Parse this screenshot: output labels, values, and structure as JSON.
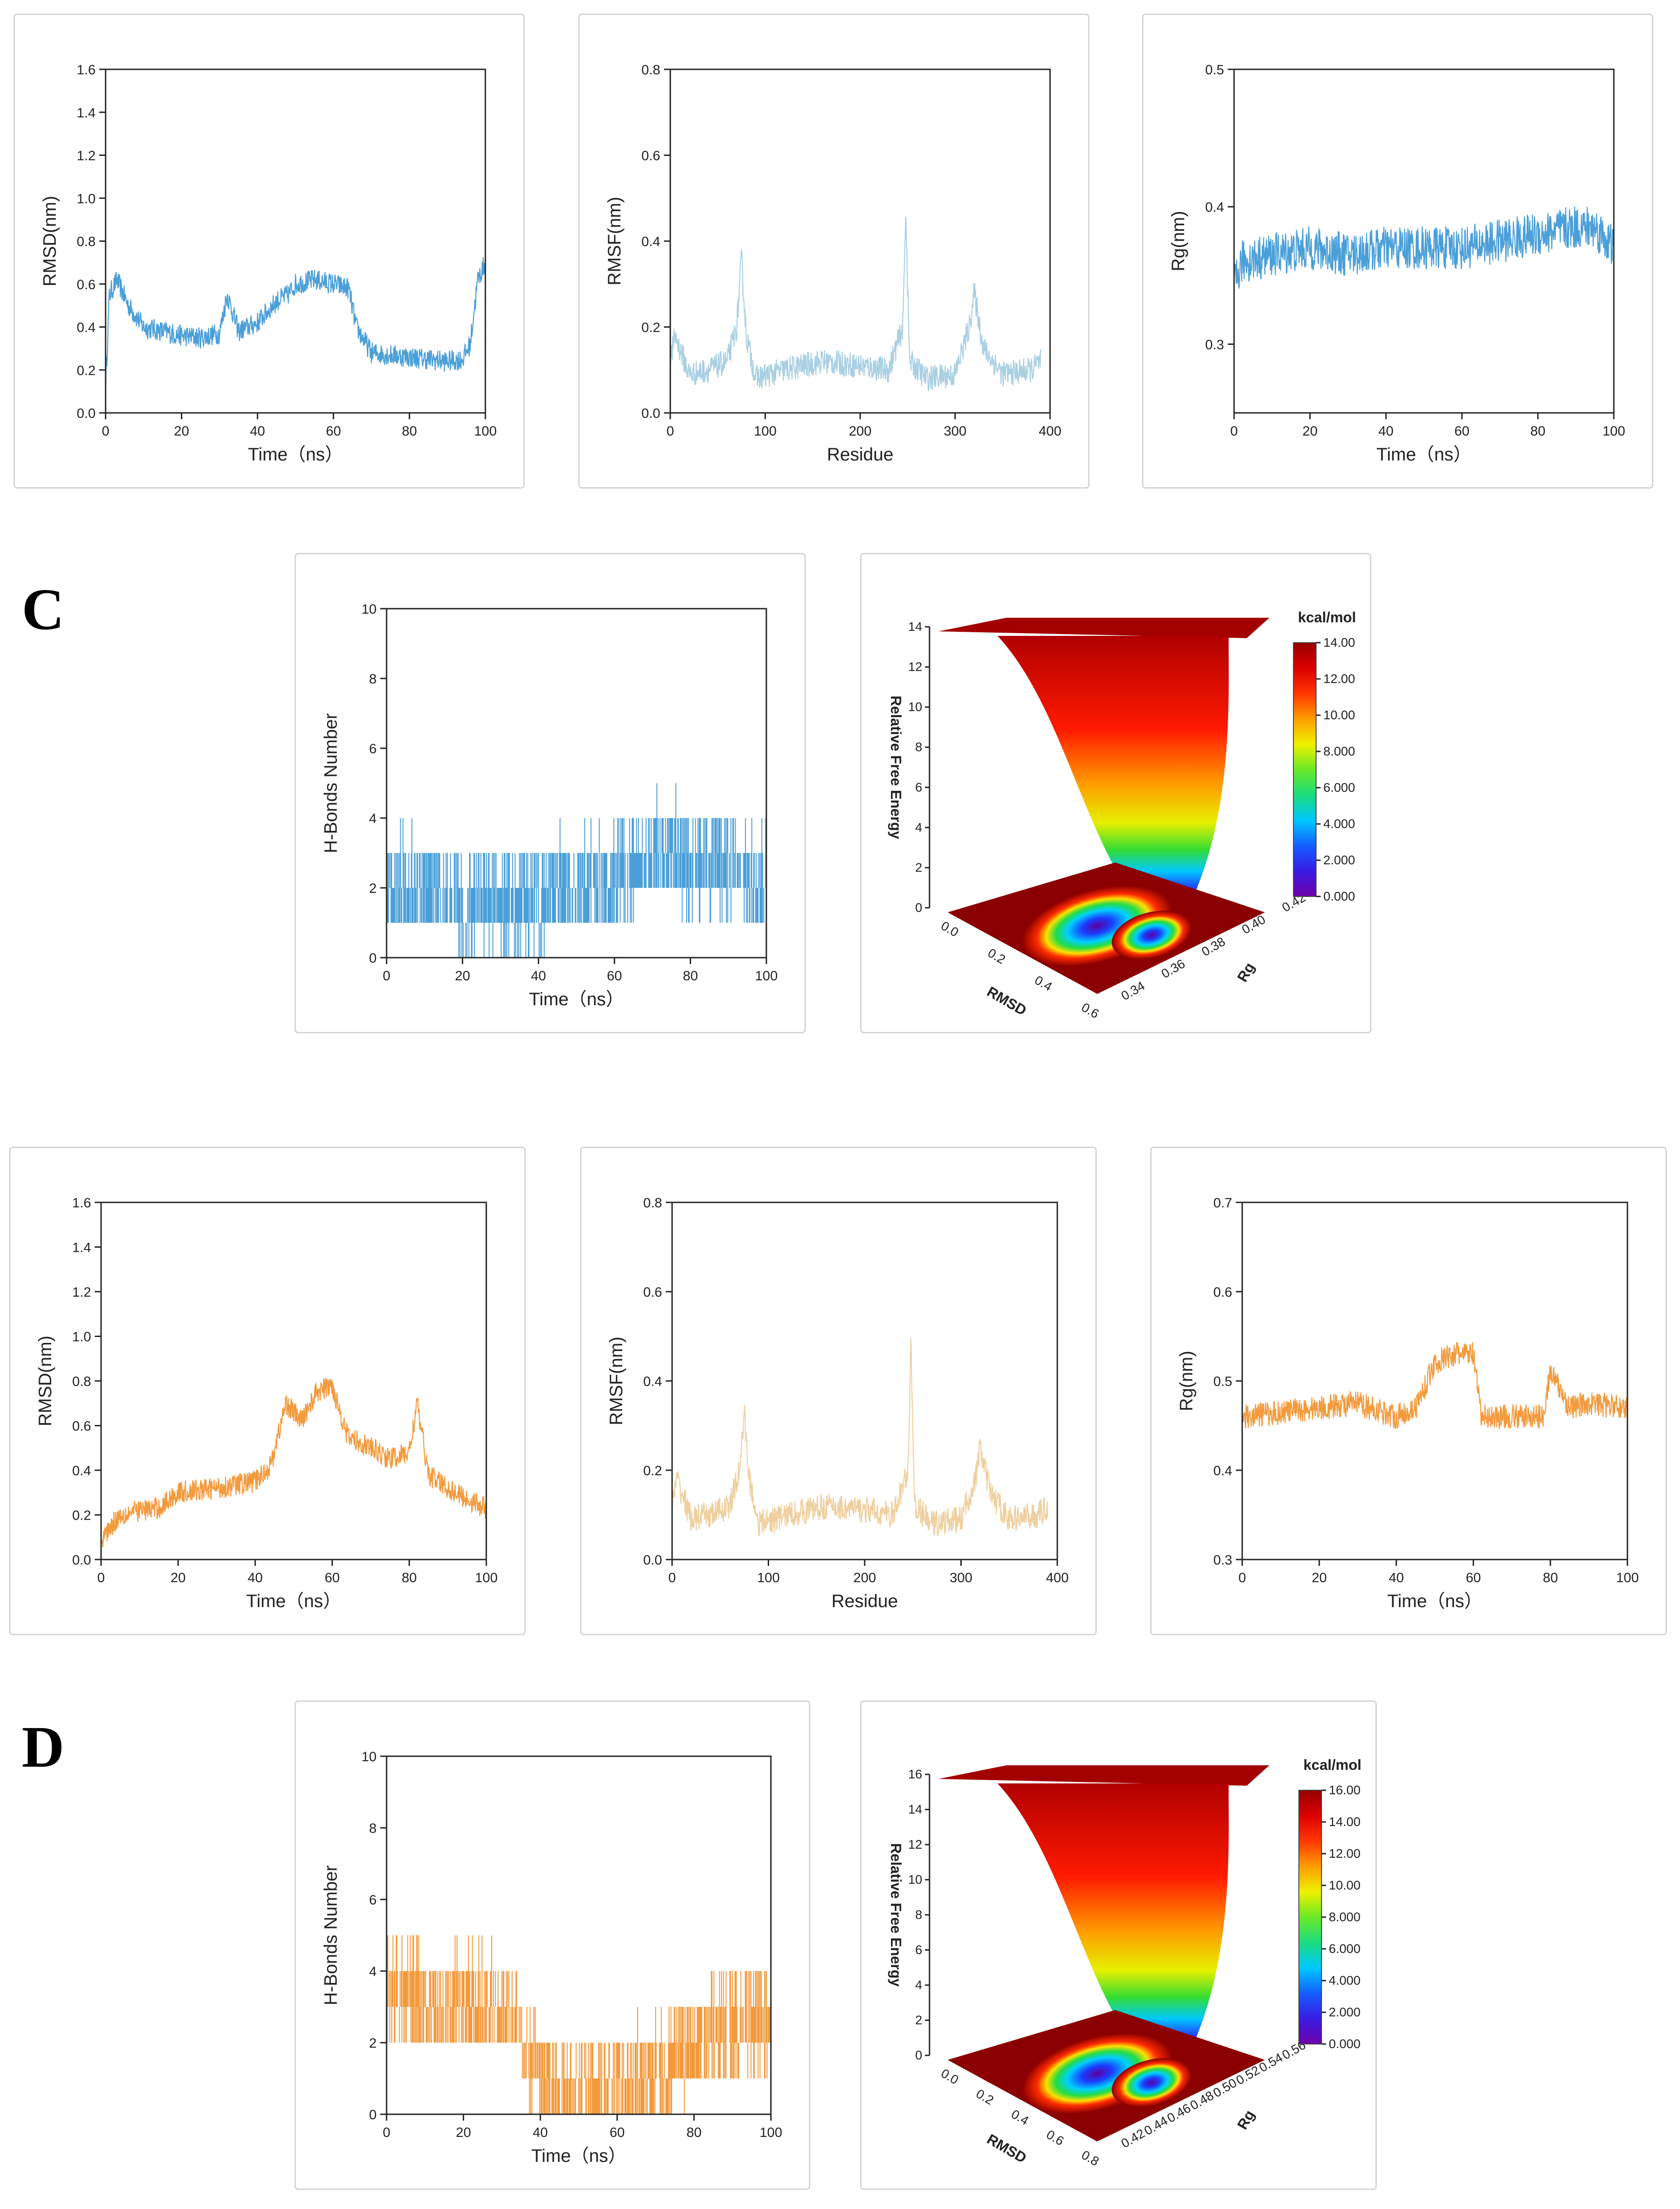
{
  "sections": {
    "c_label": "C",
    "d_label": "D"
  },
  "colors": {
    "blue": "#4a9fd8",
    "blue_light": "#a9cfe3",
    "orange": "#f39a3c",
    "orange_light": "#efcf9f"
  },
  "chart_data": [
    {
      "id": "rmsd1",
      "type": "line",
      "color": "blue",
      "xlabel": "Time（ns）",
      "ylabel": "RMSD(nm)",
      "xlim": [
        0,
        100
      ],
      "ylim": [
        0,
        1.6
      ],
      "xticks": [
        "0",
        "20",
        "40",
        "60",
        "80",
        "100"
      ],
      "yticks": [
        "0.0",
        "0.2",
        "0.4",
        "0.6",
        "0.8",
        "1.0",
        "1.2",
        "1.4",
        "1.6"
      ],
      "x": [
        0,
        1,
        3,
        6,
        10,
        15,
        20,
        25,
        30,
        32,
        35,
        40,
        45,
        48,
        50,
        55,
        60,
        64,
        66,
        70,
        75,
        80,
        85,
        90,
        94,
        96,
        98,
        100
      ],
      "y": [
        0.12,
        0.55,
        0.62,
        0.5,
        0.4,
        0.38,
        0.36,
        0.35,
        0.37,
        0.55,
        0.38,
        0.42,
        0.52,
        0.55,
        0.6,
        0.62,
        0.6,
        0.58,
        0.4,
        0.28,
        0.27,
        0.26,
        0.25,
        0.24,
        0.25,
        0.32,
        0.62,
        0.7
      ],
      "noise": 0.05
    },
    {
      "id": "rmsf1",
      "type": "line",
      "color": "blue_light",
      "xlabel": "Residue",
      "ylabel": "RMSF(nm)",
      "xlim": [
        0,
        400
      ],
      "ylim": [
        0,
        0.8
      ],
      "xticks": [
        "0",
        "100",
        "200",
        "300",
        "400"
      ],
      "yticks": [
        "0.0",
        "0.2",
        "0.4",
        "0.6",
        "0.8"
      ],
      "x": [
        0,
        5,
        20,
        40,
        60,
        70,
        75,
        80,
        90,
        120,
        160,
        200,
        230,
        245,
        248,
        252,
        270,
        300,
        315,
        320,
        330,
        350,
        380,
        390
      ],
      "y": [
        0.12,
        0.18,
        0.09,
        0.1,
        0.12,
        0.2,
        0.36,
        0.18,
        0.08,
        0.1,
        0.12,
        0.11,
        0.1,
        0.2,
        0.48,
        0.12,
        0.08,
        0.09,
        0.2,
        0.28,
        0.15,
        0.09,
        0.1,
        0.12
      ],
      "noise": 0.03
    },
    {
      "id": "rg1",
      "type": "line",
      "color": "blue",
      "xlabel": "Time（ns）",
      "ylabel": "Rg(nm)",
      "xlim": [
        0,
        100
      ],
      "ylim": [
        0.25,
        0.5
      ],
      "xticks": [
        "0",
        "20",
        "40",
        "60",
        "80",
        "100"
      ],
      "yticks": [
        "0.3",
        "0.4",
        "0.5"
      ],
      "x": [
        0,
        2,
        10,
        20,
        30,
        40,
        50,
        60,
        70,
        80,
        90,
        95,
        100
      ],
      "y": [
        0.34,
        0.36,
        0.365,
        0.37,
        0.365,
        0.37,
        0.37,
        0.37,
        0.375,
        0.38,
        0.385,
        0.385,
        0.37
      ],
      "noise": 0.016
    },
    {
      "id": "hb1",
      "type": "bar",
      "color": "blue",
      "xlabel": "Time（ns）",
      "ylabel": "H-Bonds Number",
      "xlim": [
        0,
        100
      ],
      "ylim": [
        0,
        10
      ],
      "xticks": [
        "0",
        "20",
        "40",
        "60",
        "80",
        "100"
      ],
      "yticks": [
        "0",
        "2",
        "4",
        "6",
        "8",
        "10"
      ],
      "x": [
        0,
        10,
        20,
        30,
        40,
        45,
        50,
        60,
        70,
        75,
        80,
        90,
        100
      ],
      "y": [
        2,
        2,
        1.6,
        1.6,
        1.6,
        2,
        2,
        2.2,
        3,
        3.2,
        2.6,
        2.8,
        2
      ],
      "spread": 1.4
    },
    {
      "id": "fel1",
      "type": "heatmap",
      "title": "Relative Free Energy",
      "colorbar_label": "kcal/mol",
      "colorbar_ticks": [
        "14.00",
        "12.00",
        "10.00",
        "8.000",
        "6.000",
        "4.000",
        "2.000",
        "0.000"
      ],
      "z_ticks": [
        "0",
        "2",
        "4",
        "6",
        "8",
        "10",
        "12",
        "14"
      ],
      "x_label": "RMSD",
      "x_ticks": [
        "0.0",
        "0.2",
        "0.4",
        "0.6"
      ],
      "y_label": "Rg",
      "y_ticks": [
        "0.34",
        "0.36",
        "0.38",
        "0.40",
        "0.42"
      ]
    },
    {
      "id": "rmsd2",
      "type": "line",
      "color": "orange",
      "xlabel": "Time（ns）",
      "ylabel": "RMSD(nm)",
      "xlim": [
        0,
        100
      ],
      "ylim": [
        0,
        1.6
      ],
      "xticks": [
        "0",
        "20",
        "40",
        "60",
        "80",
        "100"
      ],
      "yticks": [
        "0.0",
        "0.2",
        "0.4",
        "0.6",
        "0.8",
        "1.0",
        "1.2",
        "1.4",
        "1.6"
      ],
      "x": [
        0,
        2,
        5,
        10,
        15,
        20,
        30,
        40,
        44,
        48,
        52,
        56,
        60,
        64,
        70,
        75,
        80,
        82,
        85,
        90,
        95,
        100
      ],
      "y": [
        0.08,
        0.14,
        0.2,
        0.22,
        0.23,
        0.3,
        0.32,
        0.35,
        0.42,
        0.7,
        0.62,
        0.75,
        0.78,
        0.55,
        0.5,
        0.45,
        0.48,
        0.7,
        0.38,
        0.32,
        0.27,
        0.23
      ],
      "noise": 0.05
    },
    {
      "id": "rmsf2",
      "type": "line",
      "color": "orange_light",
      "xlabel": "Residue",
      "ylabel": "RMSF(nm)",
      "xlim": [
        0,
        400
      ],
      "ylim": [
        0,
        0.8
      ],
      "xticks": [
        "0",
        "100",
        "200",
        "300",
        "400"
      ],
      "yticks": [
        "0.0",
        "0.2",
        "0.4",
        "0.6",
        "0.8"
      ],
      "x": [
        0,
        5,
        20,
        40,
        60,
        70,
        75,
        80,
        90,
        120,
        160,
        200,
        230,
        245,
        248,
        252,
        270,
        300,
        315,
        320,
        330,
        350,
        380,
        390
      ],
      "y": [
        0.12,
        0.18,
        0.09,
        0.1,
        0.12,
        0.2,
        0.33,
        0.18,
        0.08,
        0.1,
        0.12,
        0.11,
        0.1,
        0.2,
        0.48,
        0.12,
        0.08,
        0.09,
        0.18,
        0.25,
        0.15,
        0.09,
        0.1,
        0.12
      ],
      "noise": 0.03
    },
    {
      "id": "rg2",
      "type": "line",
      "color": "orange",
      "xlabel": "Time（ns）",
      "ylabel": "Rg(nm)",
      "xlim": [
        0,
        100
      ],
      "ylim": [
        0.3,
        0.7
      ],
      "xticks": [
        "0",
        "20",
        "40",
        "60",
        "80",
        "100"
      ],
      "yticks": [
        "0.3",
        "0.4",
        "0.5",
        "0.6",
        "0.7"
      ],
      "x": [
        0,
        10,
        20,
        30,
        40,
        45,
        50,
        55,
        60,
        62,
        70,
        78,
        80,
        85,
        90,
        100
      ],
      "y": [
        0.46,
        0.465,
        0.47,
        0.475,
        0.46,
        0.47,
        0.52,
        0.53,
        0.53,
        0.46,
        0.46,
        0.46,
        0.51,
        0.47,
        0.475,
        0.47
      ],
      "noise": 0.014
    },
    {
      "id": "hb2",
      "type": "bar",
      "color": "orange",
      "xlabel": "Time（ns）",
      "ylabel": "H-Bonds Number",
      "xlim": [
        0,
        100
      ],
      "ylim": [
        0,
        10
      ],
      "xticks": [
        "0",
        "20",
        "40",
        "60",
        "80",
        "100"
      ],
      "yticks": [
        "0",
        "2",
        "4",
        "6",
        "8",
        "10"
      ],
      "x": [
        0,
        5,
        10,
        20,
        30,
        35,
        40,
        45,
        50,
        60,
        70,
        80,
        90,
        100
      ],
      "y": [
        3.6,
        3.6,
        3.0,
        3.2,
        3.0,
        2.2,
        1.2,
        0.6,
        0.6,
        0.8,
        1.2,
        1.8,
        2.5,
        2.6
      ],
      "spread": 1.4
    },
    {
      "id": "fel2",
      "type": "heatmap",
      "title": "Relative Free Energy",
      "colorbar_label": "kcal/mol",
      "colorbar_ticks": [
        "16.00",
        "14.00",
        "12.00",
        "10.00",
        "8.000",
        "6.000",
        "4.000",
        "2.000",
        "0.000"
      ],
      "z_ticks": [
        "0",
        "2",
        "4",
        "6",
        "8",
        "10",
        "12",
        "14",
        "16"
      ],
      "x_label": "RMSD",
      "x_ticks": [
        "0.0",
        "0.2",
        "0.4",
        "0.6",
        "0.8"
      ],
      "y_label": "Rg",
      "y_ticks": [
        "0.42",
        "0.44",
        "0.46",
        "0.48",
        "0.50",
        "0.52",
        "0.54",
        "0.56"
      ]
    }
  ]
}
